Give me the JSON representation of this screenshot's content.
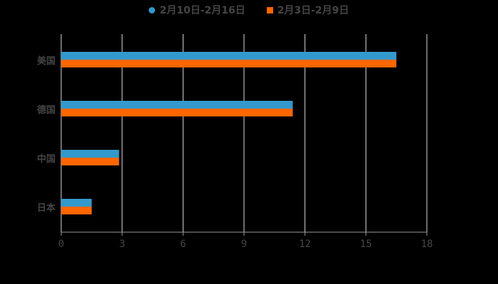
{
  "legend": [
    {
      "label": "2月10日-2月16日",
      "color": "#3399CC",
      "shape": "circle"
    },
    {
      "label": "2月3日-2月9日",
      "color": "#FF6600",
      "shape": "square"
    }
  ],
  "chart_data": {
    "type": "bar",
    "orientation": "horizontal",
    "title": "",
    "categories": [
      "美国",
      "德国",
      "中国",
      "日本"
    ],
    "series": [
      {
        "name": "2月10日-2月16日",
        "color": "#3399CC",
        "values": [
          16.5,
          11.4,
          2.85,
          1.5
        ]
      },
      {
        "name": "2月3日-2月9日",
        "color": "#FF6600",
        "values": [
          16.5,
          11.4,
          2.85,
          1.5
        ]
      }
    ],
    "xlabel": "",
    "ylabel": "",
    "xlim": [
      0,
      18
    ],
    "x_ticks": [
      "0",
      "3",
      "6",
      "9",
      "12",
      "15",
      "18"
    ],
    "grid": true,
    "legend_position": "top"
  }
}
